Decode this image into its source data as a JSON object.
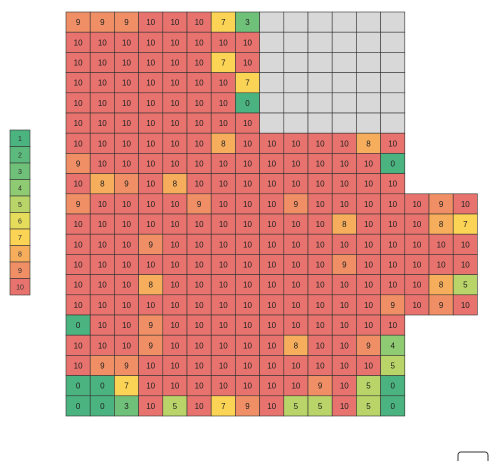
{
  "chart_data": {
    "type": "heatmap",
    "title": "",
    "xlabel": "",
    "ylabel": "",
    "legend": {
      "position": "left",
      "levels": [
        "1",
        "2",
        "3",
        "4",
        "5",
        "6",
        "7",
        "8",
        "9",
        "10"
      ],
      "colors": [
        "#4bb37f",
        "#5cba7c",
        "#6fc17a",
        "#8fcb72",
        "#b9d468",
        "#e6dc5c",
        "#fbd355",
        "#f6ae5c",
        "#f08f65",
        "#e8736e"
      ]
    },
    "empty_color": "#d8d8d8",
    "rows": [
      [
        9,
        9,
        9,
        10,
        10,
        10,
        7,
        3,
        null,
        null,
        null,
        null,
        null,
        null
      ],
      [
        10,
        10,
        10,
        10,
        10,
        10,
        10,
        10,
        null,
        null,
        null,
        null,
        null,
        null
      ],
      [
        10,
        10,
        10,
        10,
        10,
        10,
        7,
        10,
        null,
        null,
        null,
        null,
        null,
        null
      ],
      [
        10,
        10,
        10,
        10,
        10,
        10,
        10,
        7,
        null,
        null,
        null,
        null,
        null,
        null
      ],
      [
        10,
        10,
        10,
        10,
        10,
        10,
        10,
        0,
        null,
        null,
        null,
        null,
        null,
        null
      ],
      [
        10,
        10,
        10,
        10,
        10,
        10,
        10,
        10,
        null,
        null,
        null,
        null,
        null,
        null
      ],
      [
        10,
        10,
        10,
        10,
        10,
        10,
        8,
        10,
        10,
        10,
        10,
        10,
        8,
        10
      ],
      [
        9,
        10,
        10,
        10,
        10,
        10,
        10,
        10,
        10,
        10,
        10,
        10,
        10,
        0
      ],
      [
        10,
        8,
        9,
        10,
        8,
        10,
        10,
        10,
        10,
        10,
        10,
        10,
        10,
        10
      ],
      [
        9,
        10,
        10,
        10,
        10,
        9,
        10,
        10,
        10,
        9,
        10,
        10,
        10,
        10,
        10,
        9,
        10
      ],
      [
        10,
        10,
        10,
        10,
        10,
        10,
        10,
        10,
        10,
        10,
        10,
        8,
        10,
        10,
        10,
        8,
        7
      ],
      [
        10,
        10,
        10,
        9,
        10,
        10,
        10,
        10,
        10,
        10,
        10,
        10,
        10,
        10,
        10,
        10,
        10
      ],
      [
        10,
        10,
        10,
        10,
        10,
        10,
        10,
        10,
        10,
        10,
        10,
        9,
        10,
        10,
        10,
        10,
        10
      ],
      [
        10,
        10,
        10,
        8,
        10,
        10,
        10,
        10,
        10,
        10,
        10,
        10,
        10,
        10,
        10,
        8,
        5
      ],
      [
        10,
        10,
        10,
        10,
        10,
        10,
        10,
        10,
        10,
        10,
        10,
        10,
        10,
        9,
        10,
        9,
        10
      ],
      [
        0,
        10,
        10,
        9,
        10,
        10,
        10,
        10,
        10,
        10,
        10,
        10,
        10,
        10
      ],
      [
        10,
        10,
        10,
        9,
        10,
        10,
        10,
        10,
        10,
        8,
        10,
        10,
        9,
        4
      ],
      [
        10,
        9,
        9,
        10,
        10,
        10,
        10,
        10,
        10,
        10,
        10,
        10,
        10,
        5
      ],
      [
        0,
        0,
        7,
        10,
        10,
        10,
        10,
        10,
        10,
        10,
        9,
        10,
        5,
        0
      ],
      [
        0,
        0,
        3,
        10,
        5,
        10,
        7,
        9,
        10,
        5,
        5,
        10,
        5,
        0
      ]
    ]
  }
}
